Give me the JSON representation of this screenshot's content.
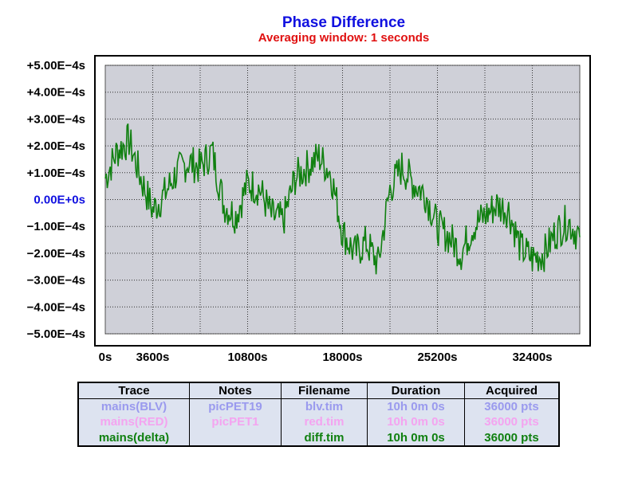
{
  "colors": {
    "title": "#1010e0",
    "subtitle": "#e01010",
    "zero_label": "#1010e0",
    "plot_bg": "#cfd0d8",
    "grid": "#303030",
    "trace": "#108010",
    "legend_bg": "#dde3f0",
    "row_blv": "#9a9aee",
    "row_red": "#f4a4f0",
    "row_delta": "#108010"
  },
  "chart_data": {
    "type": "line",
    "title": "Phase Difference",
    "subtitle": "Averaging window: 1 seconds",
    "y_ticks": [
      "+5.00E−4s",
      "+4.00E−4s",
      "+3.00E−4s",
      "+2.00E−4s",
      "+1.00E−4s",
      "0.00E+0s",
      "−1.00E−4s",
      "−2.00E−4s",
      "−3.00E−4s",
      "−4.00E−4s",
      "−5.00E−4s"
    ],
    "x_ticks": [
      "0s",
      "3600s",
      "10800s",
      "18000s",
      "25200s",
      "32400s"
    ],
    "x_tick_values": [
      0,
      3600,
      10800,
      18000,
      25200,
      32400
    ],
    "xlim": [
      0,
      36000
    ],
    "ylim": [
      -0.0005,
      0.0005
    ],
    "grid": true,
    "series": [
      {
        "name": "mains(delta)",
        "x": [
          0,
          900,
          1800,
          2700,
          3600,
          4500,
          5400,
          6300,
          7200,
          8100,
          9000,
          9900,
          10800,
          11700,
          12600,
          13500,
          14400,
          15300,
          16200,
          17100,
          18000,
          18900,
          19800,
          20700,
          21600,
          22500,
          23400,
          24300,
          25200,
          26100,
          27000,
          27900,
          28800,
          29700,
          30600,
          31500,
          32400,
          33300,
          34200,
          35100,
          36000
        ],
        "y": [
          8e-05,
          0.00018,
          0.00022,
          8e-05,
          -4e-05,
          2e-05,
          0.0001,
          0.00014,
          0.00012,
          0.00018,
          -2e-05,
          -6e-05,
          6e-05,
          4e-05,
          -6e-05,
          -8e-05,
          8e-05,
          0.00012,
          0.00016,
          0.0001,
          -0.00012,
          -0.0002,
          -0.00016,
          -0.00024,
          4e-05,
          0.00012,
          6e-05,
          2e-05,
          -0.0001,
          -0.00014,
          -0.0002,
          -0.0001,
          -6e-05,
          -2e-05,
          -4e-05,
          -0.00018,
          -0.00022,
          -0.0002,
          -0.00012,
          -8e-05,
          -0.00014
        ]
      }
    ],
    "table": {
      "headers": [
        "Trace",
        "Notes",
        "Filename",
        "Duration",
        "Acquired"
      ],
      "rows": [
        [
          "mains(BLV)",
          "picPET19",
          "blv.tim",
          "10h 0m 0s",
          "36000 pts"
        ],
        [
          "mains(RED)",
          "picPET1",
          "red.tim",
          "10h 0m 0s",
          "36000 pts"
        ],
        [
          "mains(delta)",
          "",
          "diff.tim",
          "10h 0m 0s",
          "36000 pts"
        ]
      ]
    }
  }
}
